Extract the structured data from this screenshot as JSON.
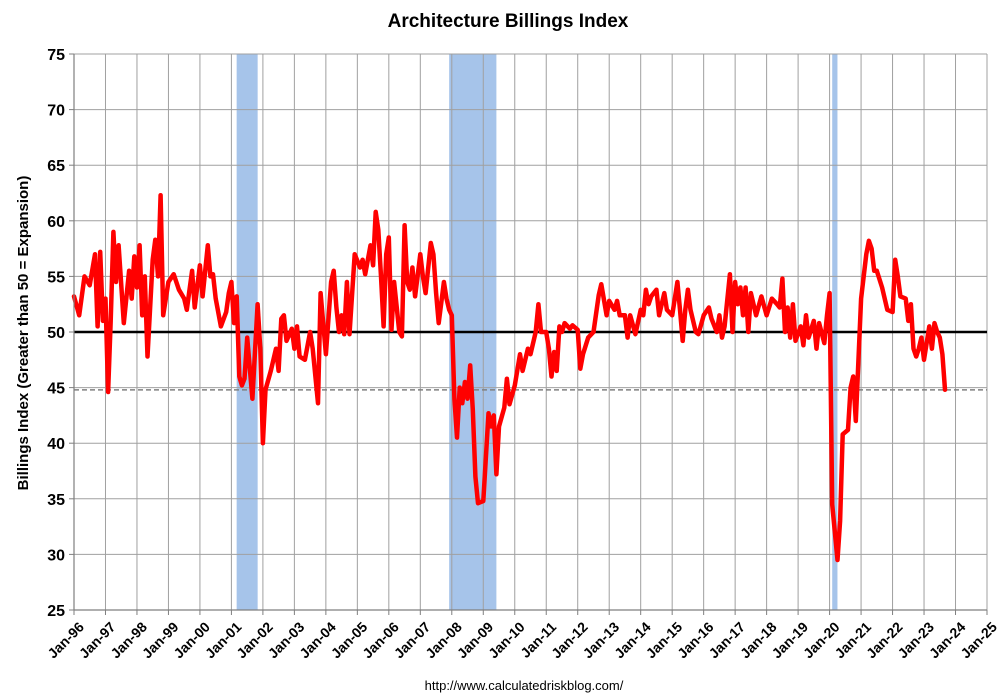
{
  "chart_data": {
    "type": "line",
    "title": "Architecture Billings Index",
    "ylabel": "Billings Index (Greater than 50 = Expansion)",
    "xlabel": "",
    "source": "http://www.calculatedriskblog.com/",
    "ylim": [
      25,
      75
    ],
    "yticks": [
      "25",
      "30",
      "35",
      "40",
      "45",
      "50",
      "55",
      "60",
      "65",
      "70",
      "75"
    ],
    "xlim": [
      "1996-01",
      "2025-01"
    ],
    "xticks": [
      "Jan-96",
      "Jan-97",
      "Jan-98",
      "Jan-99",
      "Jan-00",
      "Jan-01",
      "Jan-02",
      "Jan-03",
      "Jan-04",
      "Jan-05",
      "Jan-06",
      "Jan-07",
      "Jan-08",
      "Jan-09",
      "Jan-10",
      "Jan-11",
      "Jan-12",
      "Jan-13",
      "Jan-14",
      "Jan-15",
      "Jan-16",
      "Jan-17",
      "Jan-18",
      "Jan-19",
      "Jan-20",
      "Jan-21",
      "Jan-22",
      "Jan-23",
      "Jan-24",
      "Jan-25"
    ],
    "grid": true,
    "colors": {
      "series": "#ff0000",
      "recession": "#a6c4ea",
      "reference": "#000000",
      "dashed": "#808080",
      "grid": "#a0a0a0"
    },
    "reference_line": {
      "y": 50
    },
    "dashed_line": {
      "y": 44.8
    },
    "recessions": [
      {
        "start": "2001-03",
        "end": "2001-11"
      },
      {
        "start": "2007-12",
        "end": "2009-06"
      },
      {
        "start": "2020-02",
        "end": "2020-04"
      }
    ],
    "series": [
      {
        "values": [
          [
            "1996-01",
            53.2
          ],
          [
            "1996-03",
            51.5
          ],
          [
            "1996-05",
            55.0
          ],
          [
            "1996-07",
            54.2
          ],
          [
            "1996-09",
            57.0
          ],
          [
            "1996-10",
            50.5
          ],
          [
            "1996-11",
            57.2
          ],
          [
            "1996-12",
            51.0
          ],
          [
            "1997-01",
            53.0
          ],
          [
            "1997-02",
            44.6
          ],
          [
            "1997-03",
            51.0
          ],
          [
            "1997-04",
            59.0
          ],
          [
            "1997-05",
            54.5
          ],
          [
            "1997-06",
            57.8
          ],
          [
            "1997-08",
            50.8
          ],
          [
            "1997-10",
            55.5
          ],
          [
            "1997-11",
            53.0
          ],
          [
            "1997-12",
            56.8
          ],
          [
            "1998-01",
            54.0
          ],
          [
            "1998-02",
            57.8
          ],
          [
            "1998-03",
            51.5
          ],
          [
            "1998-04",
            55.0
          ],
          [
            "1998-05",
            47.8
          ],
          [
            "1998-07",
            56.5
          ],
          [
            "1998-08",
            58.3
          ],
          [
            "1998-09",
            55.0
          ],
          [
            "1998-10",
            62.3
          ],
          [
            "1998-11",
            51.5
          ],
          [
            "1999-01",
            54.5
          ],
          [
            "1999-03",
            55.2
          ],
          [
            "1999-05",
            53.8
          ],
          [
            "1999-07",
            53.0
          ],
          [
            "1999-08",
            52.0
          ],
          [
            "1999-10",
            55.5
          ],
          [
            "1999-11",
            52.2
          ],
          [
            "2000-01",
            56.0
          ],
          [
            "2000-02",
            53.2
          ],
          [
            "2000-04",
            57.8
          ],
          [
            "2000-05",
            55.0
          ],
          [
            "2000-06",
            55.2
          ],
          [
            "2000-07",
            53.0
          ],
          [
            "2000-09",
            50.5
          ],
          [
            "2000-11",
            51.8
          ],
          [
            "2000-12",
            53.5
          ],
          [
            "2001-01",
            54.5
          ],
          [
            "2001-02",
            50.8
          ],
          [
            "2001-03",
            53.2
          ],
          [
            "2001-04",
            46.0
          ],
          [
            "2001-05",
            45.2
          ],
          [
            "2001-06",
            45.8
          ],
          [
            "2001-07",
            49.5
          ],
          [
            "2001-09",
            44.0
          ],
          [
            "2001-11",
            52.5
          ],
          [
            "2001-12",
            48.5
          ],
          [
            "2002-01",
            40.0
          ],
          [
            "2002-02",
            44.8
          ],
          [
            "2002-04",
            46.5
          ],
          [
            "2002-06",
            48.5
          ],
          [
            "2002-07",
            46.5
          ],
          [
            "2002-08",
            51.2
          ],
          [
            "2002-09",
            51.5
          ],
          [
            "2002-10",
            49.2
          ],
          [
            "2002-12",
            50.3
          ],
          [
            "2003-01",
            48.5
          ],
          [
            "2003-02",
            50.5
          ],
          [
            "2003-03",
            47.8
          ],
          [
            "2003-05",
            47.5
          ],
          [
            "2003-07",
            50.0
          ],
          [
            "2003-08",
            48.5
          ],
          [
            "2003-10",
            43.6
          ],
          [
            "2003-11",
            53.5
          ],
          [
            "2004-01",
            48.0
          ],
          [
            "2004-03",
            54.5
          ],
          [
            "2004-04",
            55.5
          ],
          [
            "2004-05",
            52.2
          ],
          [
            "2004-06",
            50.0
          ],
          [
            "2004-07",
            51.5
          ],
          [
            "2004-08",
            49.8
          ],
          [
            "2004-09",
            54.5
          ],
          [
            "2004-10",
            49.8
          ],
          [
            "2004-12",
            57.0
          ],
          [
            "2005-02",
            55.8
          ],
          [
            "2005-03",
            56.5
          ],
          [
            "2005-04",
            55.2
          ],
          [
            "2005-06",
            57.8
          ],
          [
            "2005-07",
            56.0
          ],
          [
            "2005-08",
            60.8
          ],
          [
            "2005-09",
            59.2
          ],
          [
            "2005-10",
            55.0
          ],
          [
            "2005-11",
            50.5
          ],
          [
            "2005-12",
            57.0
          ],
          [
            "2006-01",
            58.5
          ],
          [
            "2006-02",
            50.2
          ],
          [
            "2006-03",
            54.5
          ],
          [
            "2006-05",
            50.0
          ],
          [
            "2006-06",
            49.6
          ],
          [
            "2006-07",
            59.6
          ],
          [
            "2006-08",
            54.5
          ],
          [
            "2006-09",
            53.8
          ],
          [
            "2006-10",
            55.8
          ],
          [
            "2006-11",
            53.2
          ],
          [
            "2007-01",
            57.0
          ],
          [
            "2007-02",
            55.0
          ],
          [
            "2007-03",
            53.5
          ],
          [
            "2007-05",
            58.0
          ],
          [
            "2007-06",
            57.0
          ],
          [
            "2007-07",
            53.5
          ],
          [
            "2007-08",
            50.8
          ],
          [
            "2007-10",
            54.5
          ],
          [
            "2007-11",
            53.0
          ],
          [
            "2007-12",
            52.0
          ],
          [
            "2008-01",
            51.5
          ],
          [
            "2008-02",
            44.0
          ],
          [
            "2008-03",
            40.5
          ],
          [
            "2008-04",
            45.0
          ],
          [
            "2008-05",
            43.6
          ],
          [
            "2008-06",
            45.5
          ],
          [
            "2008-07",
            44.0
          ],
          [
            "2008-08",
            47.0
          ],
          [
            "2008-09",
            43.0
          ],
          [
            "2008-10",
            37.0
          ],
          [
            "2008-11",
            34.6
          ],
          [
            "2009-01",
            34.8
          ],
          [
            "2009-03",
            42.7
          ],
          [
            "2009-04",
            41.5
          ],
          [
            "2009-05",
            42.5
          ],
          [
            "2009-06",
            37.2
          ],
          [
            "2009-07",
            41.5
          ],
          [
            "2009-09",
            43.2
          ],
          [
            "2009-10",
            45.8
          ],
          [
            "2009-11",
            43.5
          ],
          [
            "2010-01",
            45.2
          ],
          [
            "2010-03",
            48.0
          ],
          [
            "2010-04",
            46.5
          ],
          [
            "2010-06",
            48.5
          ],
          [
            "2010-07",
            48.0
          ],
          [
            "2010-09",
            50.0
          ],
          [
            "2010-10",
            52.5
          ],
          [
            "2010-11",
            50.0
          ],
          [
            "2011-01",
            50.0
          ],
          [
            "2011-02",
            48.5
          ],
          [
            "2011-03",
            46.0
          ],
          [
            "2011-04",
            48.2
          ],
          [
            "2011-05",
            46.5
          ],
          [
            "2011-06",
            50.5
          ],
          [
            "2011-07",
            50.0
          ],
          [
            "2011-08",
            50.8
          ],
          [
            "2011-10",
            50.3
          ],
          [
            "2011-11",
            50.6
          ],
          [
            "2012-01",
            50.2
          ],
          [
            "2012-02",
            46.7
          ],
          [
            "2012-03",
            48.0
          ],
          [
            "2012-05",
            49.5
          ],
          [
            "2012-07",
            50.0
          ],
          [
            "2012-09",
            53.3
          ],
          [
            "2012-10",
            54.3
          ],
          [
            "2012-12",
            51.5
          ],
          [
            "2013-01",
            52.8
          ],
          [
            "2013-03",
            52.0
          ],
          [
            "2013-04",
            52.8
          ],
          [
            "2013-05",
            51.5
          ],
          [
            "2013-07",
            51.5
          ],
          [
            "2013-08",
            49.5
          ],
          [
            "2013-09",
            51.5
          ],
          [
            "2013-11",
            49.8
          ],
          [
            "2014-01",
            52.0
          ],
          [
            "2014-02",
            51.5
          ],
          [
            "2014-03",
            53.8
          ],
          [
            "2014-04",
            52.5
          ],
          [
            "2014-05",
            53.2
          ],
          [
            "2014-07",
            53.8
          ],
          [
            "2014-08",
            51.5
          ],
          [
            "2014-10",
            53.5
          ],
          [
            "2014-11",
            52.0
          ],
          [
            "2015-01",
            51.5
          ],
          [
            "2015-03",
            54.5
          ],
          [
            "2015-04",
            52.0
          ],
          [
            "2015-05",
            49.2
          ],
          [
            "2015-06",
            52.0
          ],
          [
            "2015-07",
            53.8
          ],
          [
            "2015-08",
            52.0
          ],
          [
            "2015-10",
            50.0
          ],
          [
            "2015-11",
            49.8
          ],
          [
            "2016-01",
            51.5
          ],
          [
            "2016-03",
            52.2
          ],
          [
            "2016-04",
            51.2
          ],
          [
            "2016-06",
            50.0
          ],
          [
            "2016-07",
            51.5
          ],
          [
            "2016-08",
            49.5
          ],
          [
            "2016-09",
            50.5
          ],
          [
            "2016-11",
            55.2
          ],
          [
            "2016-12",
            50.0
          ],
          [
            "2017-01",
            54.5
          ],
          [
            "2017-02",
            52.5
          ],
          [
            "2017-03",
            54.0
          ],
          [
            "2017-04",
            51.5
          ],
          [
            "2017-05",
            54.0
          ],
          [
            "2017-06",
            50.0
          ],
          [
            "2017-07",
            53.5
          ],
          [
            "2017-09",
            51.5
          ],
          [
            "2017-11",
            53.2
          ],
          [
            "2018-01",
            51.5
          ],
          [
            "2018-03",
            53.0
          ],
          [
            "2018-05",
            52.5
          ],
          [
            "2018-06",
            52.2
          ],
          [
            "2018-07",
            54.8
          ],
          [
            "2018-08",
            50.0
          ],
          [
            "2018-09",
            52.2
          ],
          [
            "2018-10",
            49.5
          ],
          [
            "2018-11",
            52.5
          ],
          [
            "2018-12",
            49.2
          ],
          [
            "2019-02",
            50.5
          ],
          [
            "2019-03",
            48.8
          ],
          [
            "2019-04",
            51.5
          ],
          [
            "2019-05",
            49.5
          ],
          [
            "2019-07",
            51.0
          ],
          [
            "2019-08",
            48.5
          ],
          [
            "2019-09",
            50.8
          ],
          [
            "2019-11",
            49.0
          ],
          [
            "2019-12",
            51.5
          ],
          [
            "2020-01",
            53.5
          ],
          [
            "2020-02",
            34.5
          ],
          [
            "2020-04",
            29.5
          ],
          [
            "2020-05",
            33.0
          ],
          [
            "2020-06",
            40.8
          ],
          [
            "2020-08",
            41.2
          ],
          [
            "2020-09",
            45.0
          ],
          [
            "2020-10",
            46.0
          ],
          [
            "2020-11",
            42.0
          ],
          [
            "2021-01",
            53.0
          ],
          [
            "2021-02",
            55.0
          ],
          [
            "2021-03",
            57.0
          ],
          [
            "2021-04",
            58.2
          ],
          [
            "2021-05",
            57.5
          ],
          [
            "2021-06",
            55.5
          ],
          [
            "2021-07",
            55.5
          ],
          [
            "2021-09",
            54.0
          ],
          [
            "2021-11",
            52.0
          ],
          [
            "2022-01",
            51.8
          ],
          [
            "2022-02",
            56.5
          ],
          [
            "2022-03",
            55.0
          ],
          [
            "2022-04",
            53.2
          ],
          [
            "2022-06",
            53.0
          ],
          [
            "2022-07",
            51.0
          ],
          [
            "2022-08",
            52.5
          ],
          [
            "2022-09",
            48.5
          ],
          [
            "2022-10",
            47.8
          ],
          [
            "2022-11",
            48.5
          ],
          [
            "2022-12",
            49.5
          ],
          [
            "2023-01",
            47.5
          ],
          [
            "2023-03",
            50.5
          ],
          [
            "2023-04",
            48.5
          ],
          [
            "2023-05",
            50.8
          ],
          [
            "2023-06",
            50.0
          ],
          [
            "2023-07",
            49.5
          ],
          [
            "2023-08",
            48.0
          ],
          [
            "2023-09",
            44.8
          ]
        ]
      }
    ]
  }
}
